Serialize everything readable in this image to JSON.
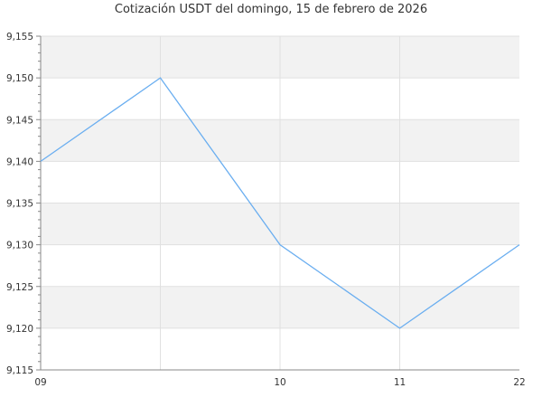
{
  "chart_data": {
    "type": "line",
    "title": "Cotización USDT del domingo, 15 de febrero de 2026",
    "xlabel": "",
    "ylabel": "",
    "categories": [
      "09",
      "",
      "10",
      "11",
      "22"
    ],
    "values": [
      9140,
      9150,
      9130,
      9120,
      9130
    ],
    "ylim": [
      9115,
      9155
    ],
    "yticks": [
      "9,115",
      "9,120",
      "9,125",
      "9,130",
      "9,135",
      "9,140",
      "9,145",
      "9,150",
      "9,155"
    ],
    "grid": true,
    "alternating_bands": true,
    "colors": {
      "line": "#6aaef0",
      "band": "#f2f2f2",
      "grid": "#e0e0e0",
      "axis": "#888888"
    }
  }
}
